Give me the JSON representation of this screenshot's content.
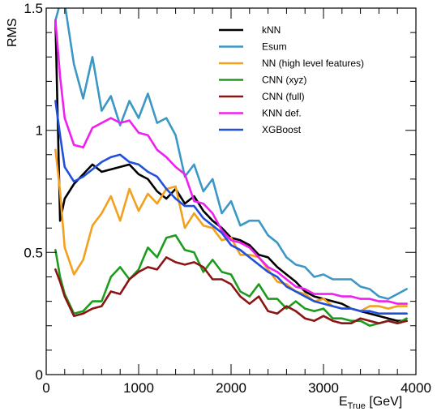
{
  "chart_data": {
    "type": "line",
    "title": "",
    "xlabel": "E",
    "xlabel_sub": "True",
    "xlabel_unit": " [GeV]",
    "ylabel": "RMS",
    "xlim": [
      0,
      4000
    ],
    "ylim": [
      0,
      1.5
    ],
    "x_ticks": [
      0,
      1000,
      2000,
      3000,
      4000
    ],
    "x_tick_labels": [
      "0",
      "1000",
      "2000",
      "3000",
      "4000"
    ],
    "y_ticks": [
      0,
      0.5,
      1,
      1.5
    ],
    "y_tick_labels": [
      "0",
      "0.5",
      "1",
      "1.5"
    ],
    "grid": false,
    "legend_position": "top-right",
    "x": [
      100,
      150,
      200,
      300,
      400,
      500,
      600,
      700,
      800,
      900,
      1000,
      1100,
      1200,
      1300,
      1400,
      1500,
      1600,
      1700,
      1800,
      1900,
      2000,
      2100,
      2200,
      2300,
      2400,
      2500,
      2600,
      2700,
      2800,
      2900,
      3000,
      3100,
      3200,
      3300,
      3400,
      3500,
      3600,
      3700,
      3800,
      3900
    ],
    "series": [
      {
        "name": "kNN",
        "color": "#000000",
        "values": [
          1.45,
          0.63,
          0.72,
          0.78,
          0.82,
          0.86,
          0.83,
          0.84,
          0.85,
          0.86,
          0.82,
          0.8,
          0.75,
          0.72,
          0.76,
          0.7,
          0.73,
          0.67,
          0.63,
          0.6,
          0.56,
          0.55,
          0.53,
          0.49,
          0.48,
          0.44,
          0.41,
          0.38,
          0.34,
          0.32,
          0.31,
          0.3,
          0.29,
          0.27,
          0.26,
          0.25,
          0.24,
          0.23,
          0.22,
          0.22
        ]
      },
      {
        "name": "Esum",
        "color": "#3b97c6",
        "values": [
          1.45,
          1.52,
          1.52,
          1.27,
          1.13,
          1.3,
          1.08,
          1.14,
          1.02,
          1.12,
          1.05,
          1.15,
          1.03,
          1.05,
          0.98,
          0.81,
          0.86,
          0.75,
          0.8,
          0.66,
          0.71,
          0.61,
          0.63,
          0.63,
          0.57,
          0.54,
          0.48,
          0.45,
          0.44,
          0.4,
          0.41,
          0.39,
          0.39,
          0.39,
          0.36,
          0.35,
          0.32,
          0.31,
          0.33,
          0.35
        ]
      },
      {
        "name": "NN (high level features)",
        "color": "#f2a01e",
        "values": [
          0.92,
          0.75,
          0.52,
          0.41,
          0.47,
          0.61,
          0.66,
          0.73,
          0.63,
          0.76,
          0.67,
          0.74,
          0.7,
          0.76,
          0.77,
          0.6,
          0.66,
          0.61,
          0.6,
          0.55,
          0.56,
          0.49,
          0.49,
          0.48,
          0.43,
          0.38,
          0.37,
          0.34,
          0.33,
          0.3,
          0.31,
          0.28,
          0.27,
          0.27,
          0.26,
          0.28,
          0.28,
          0.27,
          0.28,
          0.28
        ]
      },
      {
        "name": "CNN (xyz)",
        "color": "#1d9b1d",
        "values": [
          0.51,
          0.4,
          0.33,
          0.25,
          0.26,
          0.3,
          0.3,
          0.4,
          0.44,
          0.39,
          0.43,
          0.52,
          0.48,
          0.56,
          0.57,
          0.51,
          0.5,
          0.42,
          0.47,
          0.42,
          0.41,
          0.34,
          0.32,
          0.37,
          0.31,
          0.31,
          0.27,
          0.3,
          0.27,
          0.26,
          0.27,
          0.23,
          0.23,
          0.22,
          0.22,
          0.2,
          0.21,
          0.22,
          0.21,
          0.23
        ]
      },
      {
        "name": "CNN (full)",
        "color": "#8b1515",
        "values": [
          0.43,
          0.38,
          0.32,
          0.24,
          0.25,
          0.27,
          0.28,
          0.34,
          0.33,
          0.39,
          0.42,
          0.44,
          0.43,
          0.48,
          0.46,
          0.45,
          0.46,
          0.44,
          0.39,
          0.39,
          0.37,
          0.32,
          0.29,
          0.32,
          0.26,
          0.25,
          0.28,
          0.26,
          0.23,
          0.22,
          0.24,
          0.22,
          0.21,
          0.21,
          0.23,
          0.22,
          0.21,
          0.22,
          0.21,
          0.22
        ]
      },
      {
        "name": "KNN def.",
        "color": "#ef20ef",
        "values": [
          1.45,
          1.22,
          1.05,
          0.94,
          0.93,
          1.01,
          1.03,
          1.05,
          1.03,
          1.04,
          0.99,
          0.98,
          0.92,
          0.89,
          0.85,
          0.82,
          0.71,
          0.7,
          0.66,
          0.59,
          0.55,
          0.54,
          0.52,
          0.48,
          0.44,
          0.42,
          0.39,
          0.36,
          0.35,
          0.33,
          0.33,
          0.33,
          0.32,
          0.32,
          0.31,
          0.31,
          0.3,
          0.3,
          0.29,
          0.29
        ]
      },
      {
        "name": "XGBoost",
        "color": "#1f4fdc",
        "values": [
          1.12,
          0.98,
          0.85,
          0.79,
          0.81,
          0.84,
          0.87,
          0.89,
          0.9,
          0.87,
          0.86,
          0.83,
          0.81,
          0.76,
          0.72,
          0.69,
          0.69,
          0.64,
          0.61,
          0.58,
          0.53,
          0.51,
          0.48,
          0.45,
          0.42,
          0.4,
          0.36,
          0.34,
          0.32,
          0.3,
          0.29,
          0.28,
          0.27,
          0.27,
          0.26,
          0.26,
          0.25,
          0.25,
          0.25,
          0.25
        ]
      }
    ]
  }
}
